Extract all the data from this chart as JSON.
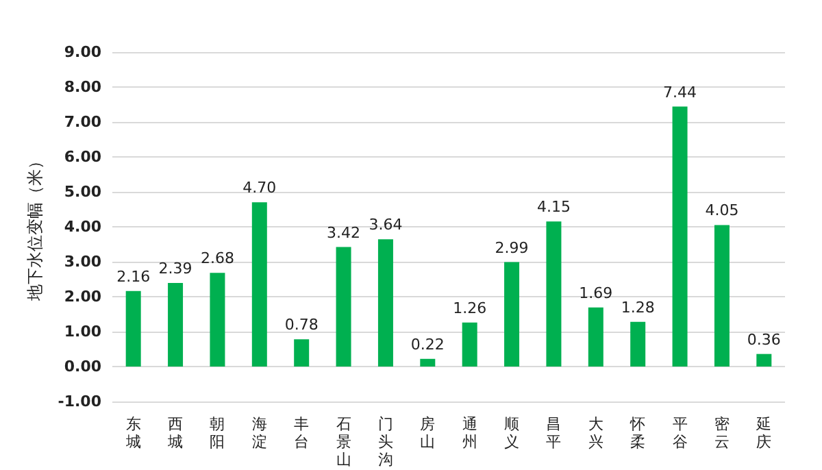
{
  "chart_data": {
    "type": "bar",
    "ylabel": "地下水位变幅（米）",
    "categories": [
      "东城",
      "西城",
      "朝阳",
      "海淀",
      "丰台",
      "石景山",
      "门头沟",
      "房山",
      "通州",
      "顺义",
      "昌平",
      "大兴",
      "怀柔",
      "平谷",
      "密云",
      "延庆"
    ],
    "values": [
      2.16,
      2.39,
      2.68,
      4.7,
      0.78,
      3.42,
      3.64,
      0.22,
      1.26,
      2.99,
      4.15,
      1.69,
      1.28,
      7.44,
      4.05,
      0.36
    ],
    "color": "#00b050",
    "ylim": [
      -1,
      9
    ],
    "yticks": [
      {
        "value": -1,
        "label": "-1.00"
      },
      {
        "value": 0,
        "label": "0.00"
      },
      {
        "value": 1,
        "label": "1.00"
      },
      {
        "value": 2,
        "label": "2.00"
      },
      {
        "value": 3,
        "label": "3.00"
      },
      {
        "value": 4,
        "label": "4.00"
      },
      {
        "value": 5,
        "label": "5.00"
      },
      {
        "value": 6,
        "label": "6.00"
      },
      {
        "value": 7,
        "label": "7.00"
      },
      {
        "value": 8,
        "label": "8.00"
      },
      {
        "value": 9,
        "label": "9.00"
      }
    ],
    "value_labels": [
      "2.16",
      "2.39",
      "2.68",
      "4.70",
      "0.78",
      "3.42",
      "3.64",
      "0.22",
      "1.26",
      "2.99",
      "4.15",
      "1.69",
      "1.28",
      "7.44",
      "4.05",
      "0.36"
    ],
    "grid": "y"
  }
}
